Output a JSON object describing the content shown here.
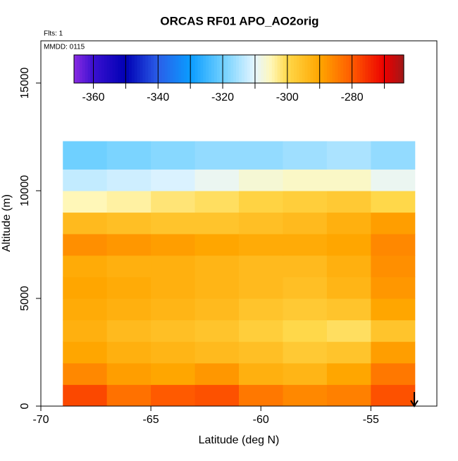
{
  "chart_data": {
    "type": "heatmap",
    "title": "ORCAS RF01 APO_AO2orig",
    "notes": [
      "Flts: 1",
      "MMDD: 0115"
    ],
    "xlabel": "Latitude (deg N)",
    "ylabel": "Altitude (m)",
    "xlim": [
      -70,
      -52
    ],
    "ylim": [
      0,
      16960
    ],
    "xticks": [
      -70,
      -65,
      -60,
      -55
    ],
    "yticks": [
      0,
      5000,
      10000,
      15000
    ],
    "x_edges": [
      -69,
      -67,
      -65,
      -63,
      -61,
      -59,
      -57,
      -55,
      -53
    ],
    "y_edges": [
      0,
      1000,
      2000,
      3000,
      4000,
      5000,
      6000,
      7000,
      8000,
      9000,
      10000,
      11000,
      12300
    ],
    "z": [
      [
        -278,
        -283,
        -280,
        -279,
        -284,
        -286,
        -285,
        -279
      ],
      [
        -286,
        -289,
        -290,
        -288,
        -292,
        -293,
        -290,
        -284
      ],
      [
        -290,
        -292,
        -293,
        -294,
        -295,
        -297,
        -296,
        -289
      ],
      [
        -292,
        -294,
        -295,
        -296,
        -298,
        -300,
        -301,
        -296
      ],
      [
        -291,
        -292,
        -293,
        -294,
        -296,
        -297,
        -296,
        -290
      ],
      [
        -290,
        -291,
        -292,
        -293,
        -294,
        -295,
        -293,
        -288
      ],
      [
        -291,
        -292,
        -292,
        -293,
        -294,
        -294,
        -292,
        -287
      ],
      [
        -287,
        -288,
        -289,
        -290,
        -291,
        -291,
        -290,
        -286
      ],
      [
        -294,
        -295,
        -296,
        -296,
        -295,
        -294,
        -292,
        -289
      ],
      [
        -305,
        -304,
        -302,
        -301,
        -299,
        -298,
        -297,
        -300
      ],
      [
        -313,
        -312,
        -311,
        -309,
        -307,
        -306,
        -306,
        -309
      ],
      [
        -320,
        -319,
        -318,
        -317,
        -317,
        -316,
        -315,
        -317
      ]
    ],
    "colorbar": {
      "lim": [
        -366,
        -264
      ],
      "ticks": [
        -360,
        -340,
        -320,
        -300,
        -280
      ],
      "lines": [
        -360,
        -350,
        -340,
        -330,
        -320,
        -310,
        -300,
        -290,
        -280,
        -270
      ],
      "colorscale": [
        [
          -366,
          "#8a2be2"
        ],
        [
          -360,
          "#3a10d0"
        ],
        [
          -350,
          "#0000b4"
        ],
        [
          -340,
          "#2a5ee8"
        ],
        [
          -330,
          "#0a9cff"
        ],
        [
          -320,
          "#6fd0ff"
        ],
        [
          -310,
          "#e6f6ff"
        ],
        [
          -305,
          "#fff7b8"
        ],
        [
          -300,
          "#ffd84a"
        ],
        [
          -290,
          "#ffa600"
        ],
        [
          -280,
          "#ff5a00"
        ],
        [
          -270,
          "#ec0000"
        ],
        [
          -264,
          "#a01818"
        ]
      ]
    }
  }
}
